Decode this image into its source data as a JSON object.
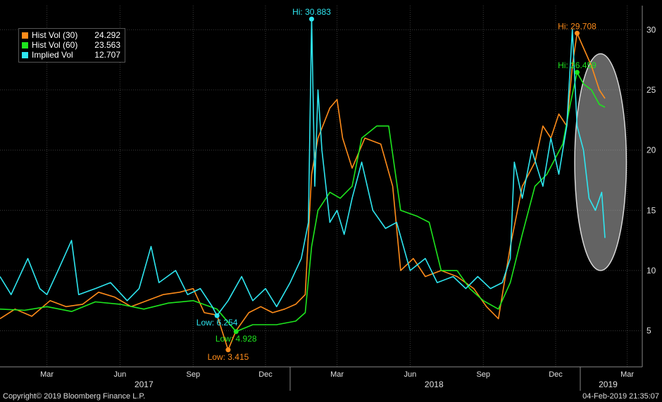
{
  "chart_data": {
    "type": "line",
    "ylim": [
      2,
      32
    ],
    "yticks": [
      5,
      10,
      15,
      20,
      25,
      30
    ],
    "x_month_ticks": [
      "Mar",
      "Jun",
      "Sep",
      "Dec",
      "Mar",
      "Jun",
      "Sep",
      "Dec",
      "Mar"
    ],
    "year_labels": [
      "2017",
      "2018",
      "2019"
    ],
    "grid": true,
    "legend_position": "top-left",
    "series": [
      {
        "name": "Hist Vol (30)",
        "last": "24.292",
        "color": "#ff8c1a",
        "points": [
          [
            "2017-01-01",
            6.0
          ],
          [
            "2017-01-20",
            6.8
          ],
          [
            "2017-02-10",
            6.2
          ],
          [
            "2017-03-05",
            7.5
          ],
          [
            "2017-03-25",
            7.0
          ],
          [
            "2017-04-15",
            7.2
          ],
          [
            "2017-05-05",
            8.2
          ],
          [
            "2017-05-25",
            7.8
          ],
          [
            "2017-06-15",
            7.0
          ],
          [
            "2017-07-05",
            7.5
          ],
          [
            "2017-07-25",
            8.0
          ],
          [
            "2017-08-15",
            8.2
          ],
          [
            "2017-09-01",
            8.5
          ],
          [
            "2017-09-15",
            6.5
          ],
          [
            "2017-10-01",
            6.3
          ],
          [
            "2017-10-15",
            3.415
          ],
          [
            "2017-10-25",
            5.0
          ],
          [
            "2017-11-10",
            6.5
          ],
          [
            "2017-11-25",
            7.0
          ],
          [
            "2017-12-10",
            6.5
          ],
          [
            "2017-12-25",
            6.8
          ],
          [
            "2018-01-08",
            7.2
          ],
          [
            "2018-01-20",
            8.0
          ],
          [
            "2018-01-28",
            18.0
          ],
          [
            "2018-02-05",
            21.0
          ],
          [
            "2018-02-20",
            23.5
          ],
          [
            "2018-03-01",
            24.2
          ],
          [
            "2018-03-08",
            21.0
          ],
          [
            "2018-03-20",
            18.5
          ],
          [
            "2018-04-05",
            21.0
          ],
          [
            "2018-04-25",
            20.5
          ],
          [
            "2018-05-10",
            17.0
          ],
          [
            "2018-05-20",
            10.0
          ],
          [
            "2018-06-05",
            11.0
          ],
          [
            "2018-06-20",
            9.5
          ],
          [
            "2018-07-10",
            10.0
          ],
          [
            "2018-07-30",
            9.5
          ],
          [
            "2018-08-20",
            8.5
          ],
          [
            "2018-09-05",
            7.0
          ],
          [
            "2018-09-20",
            6.0
          ],
          [
            "2018-10-05",
            12.0
          ],
          [
            "2018-10-20",
            17.0
          ],
          [
            "2018-11-05",
            19.0
          ],
          [
            "2018-11-15",
            22.0
          ],
          [
            "2018-11-25",
            21.0
          ],
          [
            "2018-12-05",
            23.0
          ],
          [
            "2018-12-15",
            22.0
          ],
          [
            "2018-12-22",
            27.0
          ],
          [
            "2018-12-28",
            29.708
          ],
          [
            "2019-01-05",
            28.5
          ],
          [
            "2019-01-15",
            27.0
          ],
          [
            "2019-01-25",
            25.0
          ],
          [
            "2019-02-01",
            24.292
          ]
        ],
        "annotations": [
          {
            "label": "Hi: 29.708",
            "x": "2018-12-28",
            "y": 29.708
          },
          {
            "label": "Low: 3.415",
            "x": "2017-10-15",
            "y": 3.415
          }
        ]
      },
      {
        "name": "Hist Vol (60)",
        "last": "23.563",
        "color": "#1ee61e",
        "points": [
          [
            "2017-01-01",
            6.8
          ],
          [
            "2017-02-01",
            6.7
          ],
          [
            "2017-03-01",
            7.0
          ],
          [
            "2017-04-01",
            6.6
          ],
          [
            "2017-05-01",
            7.4
          ],
          [
            "2017-06-01",
            7.2
          ],
          [
            "2017-07-01",
            6.8
          ],
          [
            "2017-08-01",
            7.3
          ],
          [
            "2017-09-01",
            7.5
          ],
          [
            "2017-10-01",
            6.8
          ],
          [
            "2017-10-25",
            4.928
          ],
          [
            "2017-11-15",
            5.5
          ],
          [
            "2017-12-15",
            5.5
          ],
          [
            "2018-01-08",
            5.8
          ],
          [
            "2018-01-20",
            6.5
          ],
          [
            "2018-01-28",
            12.0
          ],
          [
            "2018-02-05",
            15.0
          ],
          [
            "2018-02-20",
            16.5
          ],
          [
            "2018-03-05",
            16.0
          ],
          [
            "2018-03-20",
            17.0
          ],
          [
            "2018-04-01",
            21.0
          ],
          [
            "2018-04-20",
            22.0
          ],
          [
            "2018-05-05",
            22.0
          ],
          [
            "2018-05-20",
            15.0
          ],
          [
            "2018-06-10",
            14.5
          ],
          [
            "2018-06-25",
            14.0
          ],
          [
            "2018-07-10",
            10.0
          ],
          [
            "2018-07-30",
            10.0
          ],
          [
            "2018-08-15",
            8.5
          ],
          [
            "2018-09-01",
            7.5
          ],
          [
            "2018-09-20",
            6.8
          ],
          [
            "2018-10-05",
            9.0
          ],
          [
            "2018-10-20",
            13.0
          ],
          [
            "2018-11-05",
            17.0
          ],
          [
            "2018-11-20",
            18.0
          ],
          [
            "2018-12-10",
            20.5
          ],
          [
            "2018-12-20",
            24.0
          ],
          [
            "2018-12-28",
            26.459
          ],
          [
            "2019-01-05",
            25.5
          ],
          [
            "2019-01-15",
            25.0
          ],
          [
            "2019-01-25",
            23.8
          ],
          [
            "2019-02-01",
            23.563
          ]
        ],
        "annotations": [
          {
            "label": "Hi: 26.459",
            "x": "2018-12-28",
            "y": 26.459
          },
          {
            "label": "Low: 4.928",
            "x": "2017-10-25",
            "y": 4.928
          }
        ]
      },
      {
        "name": "Implied Vol",
        "last": "12.707",
        "color": "#2ee6f0",
        "points": [
          [
            "2017-01-01",
            9.5
          ],
          [
            "2017-01-15",
            8.0
          ],
          [
            "2017-02-05",
            11.0
          ],
          [
            "2017-02-20",
            8.5
          ],
          [
            "2017-03-01",
            8.0
          ],
          [
            "2017-03-15",
            10.0
          ],
          [
            "2017-04-01",
            12.5
          ],
          [
            "2017-04-10",
            8.0
          ],
          [
            "2017-05-01",
            8.5
          ],
          [
            "2017-05-20",
            9.0
          ],
          [
            "2017-06-10",
            7.5
          ],
          [
            "2017-06-25",
            8.5
          ],
          [
            "2017-07-10",
            12.0
          ],
          [
            "2017-07-20",
            9.0
          ],
          [
            "2017-08-10",
            10.0
          ],
          [
            "2017-08-25",
            8.0
          ],
          [
            "2017-09-10",
            8.5
          ],
          [
            "2017-09-25",
            7.0
          ],
          [
            "2017-10-01",
            6.254
          ],
          [
            "2017-10-15",
            7.5
          ],
          [
            "2017-11-01",
            9.5
          ],
          [
            "2017-11-15",
            7.5
          ],
          [
            "2017-12-01",
            8.5
          ],
          [
            "2017-12-15",
            7.0
          ],
          [
            "2018-01-01",
            9.0
          ],
          [
            "2018-01-15",
            11.0
          ],
          [
            "2018-01-24",
            14.0
          ],
          [
            "2018-01-28",
            30.883
          ],
          [
            "2018-02-01",
            17.0
          ],
          [
            "2018-02-05",
            25.0
          ],
          [
            "2018-02-10",
            20.0
          ],
          [
            "2018-02-20",
            14.0
          ],
          [
            "2018-03-01",
            15.0
          ],
          [
            "2018-03-10",
            13.0
          ],
          [
            "2018-03-20",
            16.0
          ],
          [
            "2018-04-01",
            19.0
          ],
          [
            "2018-04-15",
            15.0
          ],
          [
            "2018-05-01",
            13.5
          ],
          [
            "2018-05-15",
            14.0
          ],
          [
            "2018-06-01",
            10.0
          ],
          [
            "2018-06-20",
            11.0
          ],
          [
            "2018-07-05",
            9.0
          ],
          [
            "2018-07-25",
            9.5
          ],
          [
            "2018-08-10",
            8.5
          ],
          [
            "2018-08-25",
            9.5
          ],
          [
            "2018-09-10",
            8.5
          ],
          [
            "2018-09-25",
            9.0
          ],
          [
            "2018-10-05",
            11.0
          ],
          [
            "2018-10-10",
            19.0
          ],
          [
            "2018-10-20",
            16.0
          ],
          [
            "2018-11-01",
            20.0
          ],
          [
            "2018-11-15",
            17.0
          ],
          [
            "2018-11-25",
            21.0
          ],
          [
            "2018-12-05",
            18.0
          ],
          [
            "2018-12-15",
            22.0
          ],
          [
            "2018-12-22",
            30.0
          ],
          [
            "2018-12-28",
            22.0
          ],
          [
            "2019-01-05",
            20.0
          ],
          [
            "2019-01-12",
            16.0
          ],
          [
            "2019-01-20",
            15.0
          ],
          [
            "2019-01-28",
            16.5
          ],
          [
            "2019-02-01",
            12.707
          ]
        ],
        "annotations": [
          {
            "label": "Hi: 30.883",
            "x": "2018-01-28",
            "y": 30.883
          },
          {
            "label": "Low: 6.254",
            "x": "2017-10-01",
            "y": 6.254
          }
        ]
      }
    ]
  },
  "footer": {
    "copyright": "Copyright© 2019 Bloomberg Finance L.P.",
    "timestamp": "04-Feb-2019 21:35:07"
  },
  "highlight_color": "#d9d9d9"
}
